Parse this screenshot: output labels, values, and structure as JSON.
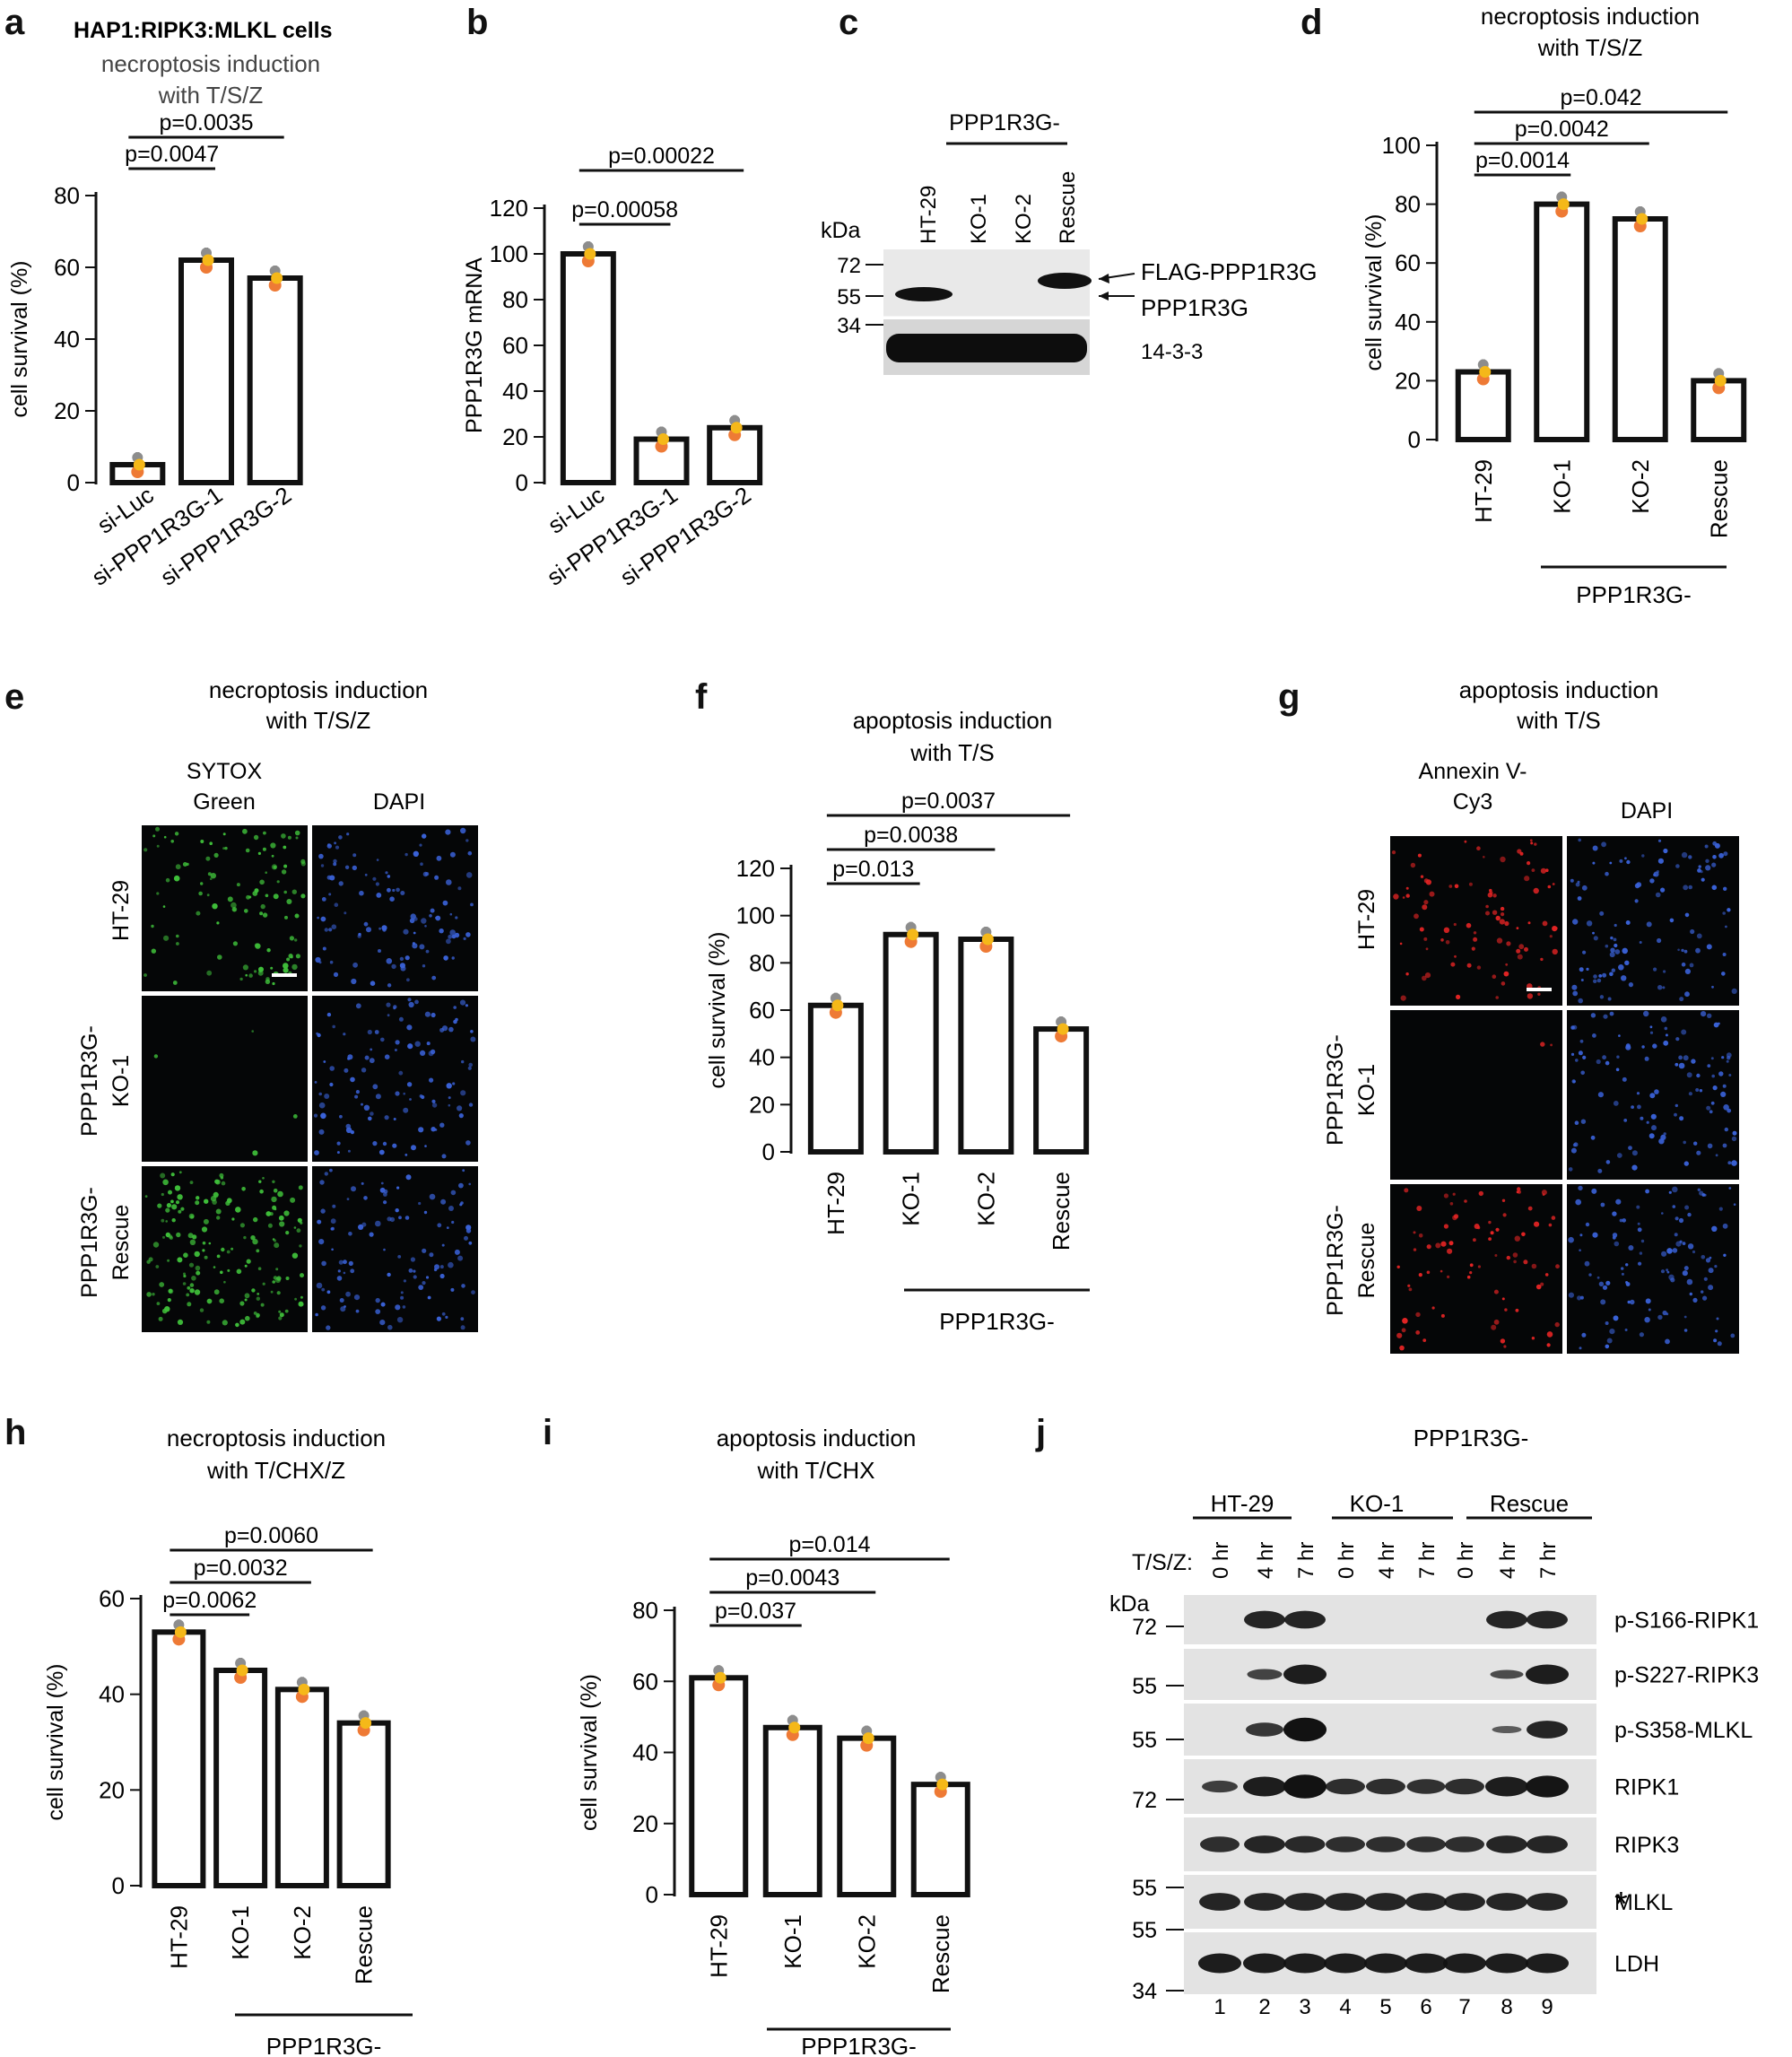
{
  "panel_letters": [
    "a",
    "b",
    "c",
    "d",
    "e",
    "f",
    "g",
    "h",
    "i",
    "j"
  ],
  "header_a": {
    "cells": "HAP1:RIPK3:MLKL cells",
    "t1": "necroptosis induction",
    "t2": "with T/S/Z"
  },
  "chart_data": [
    {
      "panel": "a",
      "type": "bar",
      "title": "necroptosis induction with T/S/Z",
      "ylabel": "cell survival (%)",
      "ylim": [
        0,
        80
      ],
      "yticks": [
        0,
        20,
        40,
        60,
        80
      ],
      "categories": [
        "si-Luc",
        "si-PPP1R3G-1",
        "si-PPP1R3G-2"
      ],
      "values": [
        5,
        62,
        57
      ],
      "sig": [
        {
          "from": 0,
          "to": 1,
          "label": "p=0.0047"
        },
        {
          "from": 0,
          "to": 2,
          "label": "p=0.0035"
        }
      ]
    },
    {
      "panel": "b",
      "type": "bar",
      "ylabel": "PPP1R3G mRNA",
      "ylim": [
        0,
        120
      ],
      "yticks": [
        0,
        20,
        40,
        60,
        80,
        100,
        120
      ],
      "categories": [
        "si-Luc",
        "si-PPP1R3G-1",
        "si-PPP1R3G-2"
      ],
      "values": [
        100,
        19,
        24
      ],
      "sig": [
        {
          "from": 0,
          "to": 1,
          "label": "p=0.00058"
        },
        {
          "from": 0,
          "to": 2,
          "label": "p=0.00022"
        }
      ]
    },
    {
      "panel": "d",
      "type": "bar",
      "title": "necroptosis induction with T/S/Z",
      "ylabel": "cell survival (%)",
      "ylim": [
        0,
        100
      ],
      "yticks": [
        0,
        20,
        40,
        60,
        80,
        100
      ],
      "categories": [
        "HT-29",
        "KO-1",
        "KO-2",
        "Rescue"
      ],
      "values": [
        23,
        80,
        75,
        20
      ],
      "group_label": "PPP1R3G-",
      "sig": [
        {
          "from": 0,
          "to": 1,
          "label": "p=0.0014"
        },
        {
          "from": 0,
          "to": 2,
          "label": "p=0.0042"
        },
        {
          "from": 0,
          "to": 3,
          "label": "p=0.042"
        }
      ]
    },
    {
      "panel": "f",
      "type": "bar",
      "title": "apoptosis induction with T/S",
      "ylabel": "cell survival (%)",
      "ylim": [
        0,
        120
      ],
      "yticks": [
        0,
        20,
        40,
        60,
        80,
        100,
        120
      ],
      "categories": [
        "HT-29",
        "KO-1",
        "KO-2",
        "Rescue"
      ],
      "values": [
        62,
        92,
        90,
        52
      ],
      "group_label": "PPP1R3G-",
      "sig": [
        {
          "from": 0,
          "to": 1,
          "label": "p=0.013"
        },
        {
          "from": 0,
          "to": 2,
          "label": "p=0.0038"
        },
        {
          "from": 0,
          "to": 3,
          "label": "p=0.0037"
        }
      ]
    },
    {
      "panel": "h",
      "type": "bar",
      "title": "necroptosis induction with T/CHX/Z",
      "ylabel": "cell survival (%)",
      "ylim": [
        0,
        60
      ],
      "yticks": [
        0,
        20,
        40,
        60
      ],
      "categories": [
        "HT-29",
        "KO-1",
        "KO-2",
        "Rescue"
      ],
      "values": [
        53,
        45,
        41,
        34
      ],
      "group_label": "PPP1R3G-",
      "sig": [
        {
          "from": 0,
          "to": 1,
          "label": "p=0.0062"
        },
        {
          "from": 0,
          "to": 2,
          "label": "p=0.0032"
        },
        {
          "from": 0,
          "to": 3,
          "label": "p=0.0060"
        }
      ]
    },
    {
      "panel": "i",
      "type": "bar",
      "title": "apoptosis induction with T/CHX",
      "ylabel": "cell survival (%)",
      "ylim": [
        0,
        80
      ],
      "yticks": [
        0,
        20,
        40,
        60,
        80
      ],
      "categories": [
        "HT-29",
        "KO-1",
        "KO-2",
        "Rescue"
      ],
      "values": [
        61,
        47,
        44,
        31
      ],
      "group_label": "PPP1R3G-",
      "sig": [
        {
          "from": 0,
          "to": 1,
          "label": "p=0.037"
        },
        {
          "from": 0,
          "to": 2,
          "label": "p=0.0043"
        },
        {
          "from": 0,
          "to": 3,
          "label": "p=0.014"
        }
      ]
    }
  ],
  "dot_colors": {
    "orange": "#ee7a35",
    "yellow": "#f5b819",
    "gray": "#8d8d8d"
  },
  "blot_c": {
    "group": "PPP1R3G-",
    "kda_label": "kDa",
    "lanes": [
      "HT-29",
      "KO-1",
      "KO-2",
      "Rescue"
    ],
    "kda": [
      "72",
      "55",
      "34"
    ],
    "annotations": [
      "FLAG-PPP1R3G",
      "PPP1R3G",
      "14-3-3"
    ]
  },
  "micro_e": {
    "title1": "necroptosis induction",
    "title2": "with T/S/Z",
    "col1": [
      "SYTOX",
      "Green"
    ],
    "col2": "DAPI",
    "rows": [
      [
        "HT-29"
      ],
      [
        "PPP1R3G-",
        "KO-1"
      ],
      [
        "PPP1R3G-",
        "Rescue"
      ]
    ],
    "stain_color": "#3fbf3a",
    "dapi_color": "#3a62d8"
  },
  "micro_g": {
    "title1": "apoptosis induction",
    "title2": "with T/S",
    "col1": [
      "Annexin V-",
      "Cy3"
    ],
    "col2": "DAPI",
    "rows": [
      [
        "HT-29"
      ],
      [
        "PPP1R3G-",
        "KO-1"
      ],
      [
        "PPP1R3G-",
        "Rescue"
      ]
    ],
    "stain_color": "#e42424",
    "dapi_color": "#3a62d8"
  },
  "blot_j": {
    "group_top": "PPP1R3G-",
    "groups": [
      "HT-29",
      "KO-1",
      "Rescue"
    ],
    "treatment_label": "T/S/Z:",
    "kda_label": "kDa",
    "times": [
      "0 hr",
      "4 hr",
      "7 hr",
      "0 hr",
      "4 hr",
      "7 hr",
      "0 hr",
      "4 hr",
      "7 hr"
    ],
    "lane_numbers": [
      "1",
      "2",
      "3",
      "4",
      "5",
      "6",
      "7",
      "8",
      "9"
    ],
    "rows": [
      {
        "name": "p-S166-RIPK1",
        "kda": "72"
      },
      {
        "name": "p-S227-RIPK3",
        "kda": "55"
      },
      {
        "name": "p-S358-MLKL",
        "kda": "55"
      },
      {
        "name": "RIPK1",
        "kda": "72"
      },
      {
        "name": "RIPK3",
        "kda": "55"
      },
      {
        "name": "MLKL",
        "kda": "55"
      },
      {
        "name": "LDH",
        "kda": "34"
      }
    ],
    "asterisk": "*"
  }
}
